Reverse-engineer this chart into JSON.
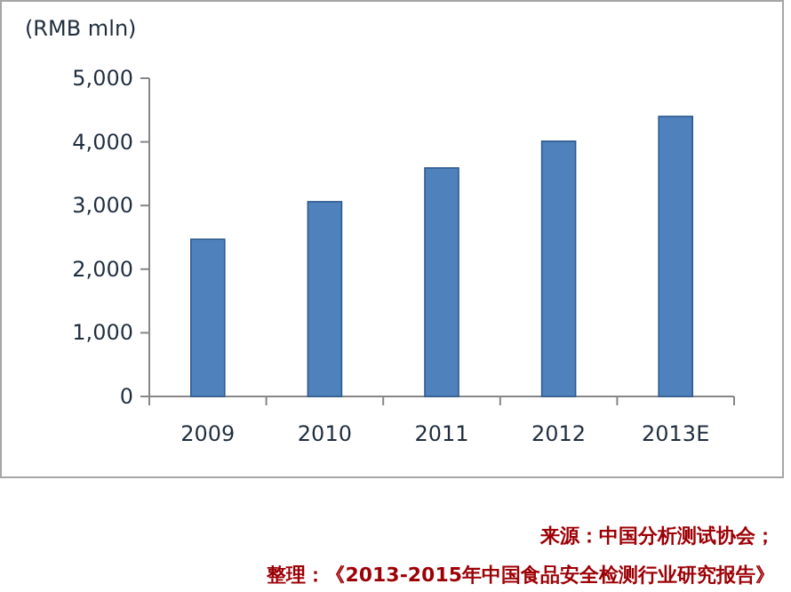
{
  "chart_data": {
    "type": "bar",
    "ylabel": "(RMB mln)",
    "categories": [
      "2009",
      "2010",
      "2011",
      "2012",
      "2013E"
    ],
    "values": [
      2470,
      3060,
      3590,
      4010,
      4400
    ],
    "color": "#4f81bd",
    "ylim": [
      0,
      5000
    ],
    "yticks": [
      0,
      {
        "value": 1000,
        "label": "1,000"
      },
      {
        "value": 2000,
        "label": "2,000"
      },
      {
        "value": 3000,
        "label": "3,000"
      },
      {
        "value": 4000,
        "label": "4,000"
      },
      {
        "value": 5000,
        "label": "5,000"
      }
    ],
    "annotations": [
      "来源：中国分析测试协会；",
      "整理：《2013-2015年中国食品安全检测行业研究报告》"
    ]
  }
}
